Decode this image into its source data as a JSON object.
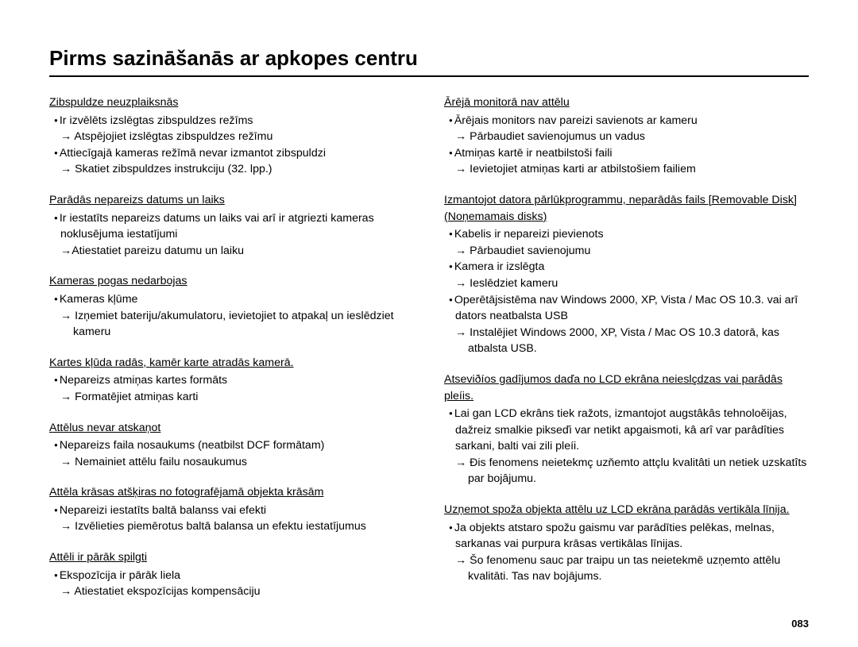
{
  "title": "Pirms sazināšanās ar apkopes centru",
  "page_number": "083",
  "left": {
    "s1": {
      "head": "Zibspuldze neuzplaiksnās",
      "b1": "Ir izvēlēts izslēgtas zibspuldzes režīms",
      "a1": "Atspējojiet izslēgtas zibspuldzes režīmu",
      "b2": "Attiecīgajā kameras režīmā nevar izmantot zibspuldzi",
      "a2": "Skatiet zibspuldzes instrukciju (32. lpp.)"
    },
    "s2": {
      "head": "Parādās nepareizs datums un laiks",
      "b1": "Ir iestatīts nepareizs datums un laiks vai arī ir atgriezti kameras noklusējuma iestatījumi",
      "a1": "→Atiestatiet pareizu datumu un laiku"
    },
    "s3": {
      "head": "Kameras pogas nedarbojas",
      "b1": "Kameras kļūme",
      "a1": "Izņemiet bateriju/akumulatoru, ievietojiet to atpakaļ un ieslēdziet kameru"
    },
    "s4": {
      "head": "Kartes kļūda radās, kamēr karte atradās kamerā.",
      "b1": "Nepareizs atmiņas kartes formāts",
      "a1": "Formatējiet atmiņas karti"
    },
    "s5": {
      "head": "Attēlus nevar atskaņot",
      "b1": "Nepareizs faila nosaukums (neatbilst DCF formātam)",
      "a1": "Nemainiet attēlu failu nosaukumus"
    },
    "s6": {
      "head": "Attēla krāsas atšķiras no fotografējamā objekta krāsām",
      "b1": "Nepareizi iestatīts baltā balanss vai efekti",
      "a1": "Izvēlieties piemērotus baltā balansa un efektu iestatījumus"
    },
    "s7": {
      "head": "Attēli ir pārāk spilgti",
      "b1": "Ekspozīcija ir pārāk liela",
      "a1": "Atiestatiet ekspozīcijas kompensāciju"
    }
  },
  "right": {
    "s1": {
      "head": "Ārējā monitorā nav attēlu",
      "b1": "Ārējais monitors nav pareizi savienots ar kameru",
      "a1": "Pārbaudiet savienojumus un vadus",
      "b2": "Atmiņas kartē ir neatbilstoši faili",
      "a2": "Ievietojiet atmiņas karti ar atbilstošiem failiem"
    },
    "s2": {
      "head": "Izmantojot datora pārlūkprogrammu, neparādās fails [Removable Disk] (Noņemamais disks)",
      "b1": "Kabelis ir nepareizi pievienots",
      "a1": "Pārbaudiet savienojumu",
      "b2": "Kamera ir izslēgta",
      "a2": "Ieslēdziet kameru",
      "b3": "Operētājsistēma nav Windows 2000, XP, Vista / Mac OS 10.3. vai arī dators neatbalsta USB",
      "a3": "Instalējiet Windows 2000, XP, Vista / Mac OS 10.3 datorā, kas atbalsta USB."
    },
    "s3": {
      "head": "Atseviðíos gadîjumos daďa no LCD ekrâna neieslçdzas vai parâdâs pleíis.",
      "b1": "Lai gan LCD ekrâns tiek ražots, izmantojot augstâkâs tehnoloěijas, dažreiz smalkie pikseďi var netikt apgaismoti, kâ arî var parâdîties sarkani, balti vai zili pleíi.",
      "a1": "Ðis fenomens neietekmç uzňemto attçlu kvalitâti un netiek uzskatîts par bojâjumu."
    },
    "s4": {
      "head": "Uzņemot spoža objekta attēlu uz LCD ekrāna parādās vertikāla līnija.",
      "b1": "Ja objekts atstaro spožu gaismu var parādīties pelēkas, melnas, sarkanas vai purpura krāsas vertikālas līnijas.",
      "a1": "Šo fenomenu sauc par traipu un tas neietekmē uzņemto attēlu kvalitāti. Tas nav bojājums."
    }
  }
}
